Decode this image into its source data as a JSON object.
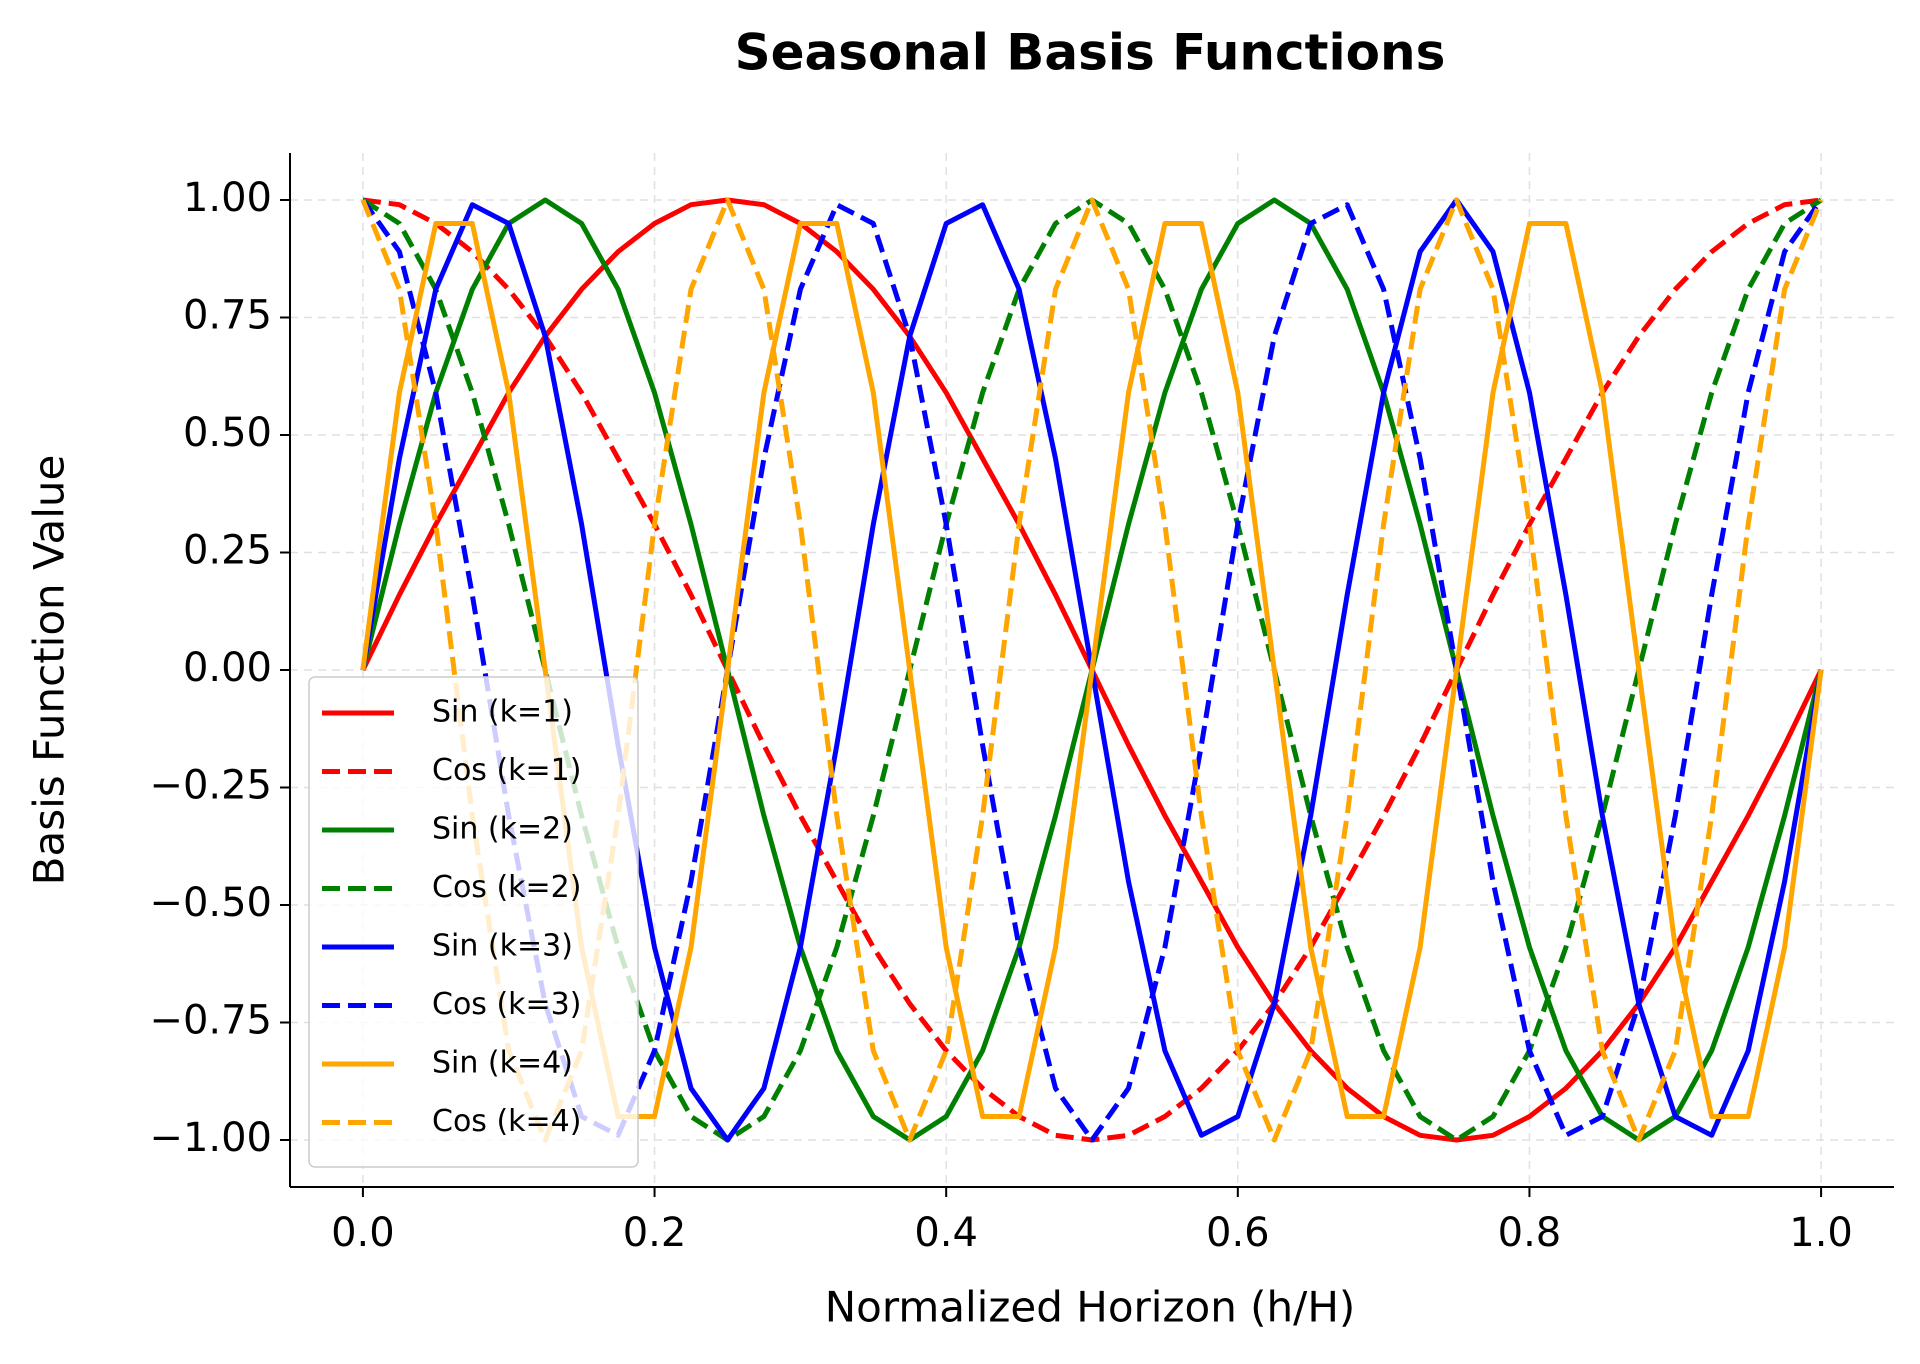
{
  "chart_data": {
    "type": "line",
    "title": "Seasonal Basis Functions",
    "xlabel": "Normalized Horizon (h/H)",
    "ylabel": "Basis Function Value",
    "xlim": [
      -0.05,
      1.05
    ],
    "ylim": [
      -1.1,
      1.1
    ],
    "xticks": [
      {
        "value": 0,
        "label": "0.0"
      },
      {
        "value": 0.2,
        "label": "0.2"
      },
      {
        "value": 0.4,
        "label": "0.4"
      },
      {
        "value": 0.6,
        "label": "0.6"
      },
      {
        "value": 0.8,
        "label": "0.8"
      },
      {
        "value": 1,
        "label": "1.0"
      }
    ],
    "yticks": [
      {
        "value": -1,
        "label": "−1.00"
      },
      {
        "value": -0.75,
        "label": "−0.75"
      },
      {
        "value": -0.5,
        "label": "−0.50"
      },
      {
        "value": -0.25,
        "label": "−0.25"
      },
      {
        "value": 0,
        "label": "0.00"
      },
      {
        "value": 0.25,
        "label": "0.25"
      },
      {
        "value": 0.5,
        "label": "0.50"
      },
      {
        "value": 0.75,
        "label": "0.75"
      },
      {
        "value": 1,
        "label": "1.00"
      }
    ],
    "grid": true,
    "legend_loc": "lower left",
    "x": [
      0,
      0.025,
      0.05,
      0.075,
      0.1,
      0.125,
      0.15,
      0.175,
      0.2,
      0.225,
      0.25,
      0.275,
      0.3,
      0.325,
      0.35,
      0.375,
      0.4,
      0.425,
      0.45,
      0.475,
      0.5,
      0.525,
      0.55,
      0.575,
      0.6,
      0.625,
      0.65,
      0.675,
      0.7,
      0.725,
      0.75,
      0.775,
      0.8,
      0.825,
      0.85,
      0.875,
      0.9,
      0.925,
      0.95,
      0.975,
      1
    ],
    "series": [
      {
        "name": "Sin (k=1)",
        "color": "#ff0000",
        "linestyle": "solid",
        "values": [
          0,
          0.16,
          0.31,
          0.45,
          0.59,
          0.71,
          0.81,
          0.89,
          0.95,
          0.99,
          1,
          0.99,
          0.95,
          0.89,
          0.81,
          0.71,
          0.59,
          0.45,
          0.31,
          0.16,
          0,
          -0.16,
          -0.31,
          -0.45,
          -0.59,
          -0.71,
          -0.81,
          -0.89,
          -0.95,
          -0.99,
          -1,
          -0.99,
          -0.95,
          -0.89,
          -0.81,
          -0.71,
          -0.59,
          -0.45,
          -0.31,
          -0.16,
          0
        ]
      },
      {
        "name": "Cos (k=1)",
        "color": "#ff0000",
        "linestyle": "dashed",
        "values": [
          1,
          0.99,
          0.95,
          0.89,
          0.81,
          0.71,
          0.59,
          0.45,
          0.31,
          0.16,
          0,
          -0.16,
          -0.31,
          -0.45,
          -0.59,
          -0.71,
          -0.81,
          -0.89,
          -0.95,
          -0.99,
          -1,
          -0.99,
          -0.95,
          -0.89,
          -0.81,
          -0.71,
          -0.59,
          -0.45,
          -0.31,
          -0.16,
          0,
          0.16,
          0.31,
          0.45,
          0.59,
          0.71,
          0.81,
          0.89,
          0.95,
          0.99,
          1
        ]
      },
      {
        "name": "Sin (k=2)",
        "color": "#008000",
        "linestyle": "solid",
        "values": [
          0,
          0.31,
          0.59,
          0.81,
          0.95,
          1,
          0.95,
          0.81,
          0.59,
          0.31,
          0,
          -0.31,
          -0.59,
          -0.81,
          -0.95,
          -1,
          -0.95,
          -0.81,
          -0.59,
          -0.31,
          0,
          0.31,
          0.59,
          0.81,
          0.95,
          1,
          0.95,
          0.81,
          0.59,
          0.31,
          0,
          -0.31,
          -0.59,
          -0.81,
          -0.95,
          -1,
          -0.95,
          -0.81,
          -0.59,
          -0.31,
          0
        ]
      },
      {
        "name": "Cos (k=2)",
        "color": "#008000",
        "linestyle": "dashed",
        "values": [
          1,
          0.95,
          0.81,
          0.59,
          0.31,
          0,
          -0.31,
          -0.59,
          -0.81,
          -0.95,
          -1,
          -0.95,
          -0.81,
          -0.59,
          -0.31,
          0,
          0.31,
          0.59,
          0.81,
          0.95,
          1,
          0.95,
          0.81,
          0.59,
          0.31,
          0,
          -0.31,
          -0.59,
          -0.81,
          -0.95,
          -1,
          -0.95,
          -0.81,
          -0.59,
          -0.31,
          0,
          0.31,
          0.59,
          0.81,
          0.95,
          1
        ]
      },
      {
        "name": "Sin (k=3)",
        "color": "#0000ff",
        "linestyle": "solid",
        "values": [
          0,
          0.45,
          0.81,
          0.99,
          0.95,
          0.71,
          0.31,
          -0.16,
          -0.59,
          -0.89,
          -1,
          -0.89,
          -0.59,
          -0.16,
          0.31,
          0.71,
          0.95,
          0.99,
          0.81,
          0.45,
          0,
          -0.45,
          -0.81,
          -0.99,
          -0.95,
          -0.71,
          -0.31,
          0.16,
          0.59,
          0.89,
          1,
          0.89,
          0.59,
          0.16,
          -0.31,
          -0.71,
          -0.95,
          -0.99,
          -0.81,
          -0.45,
          0
        ]
      },
      {
        "name": "Cos (k=3)",
        "color": "#0000ff",
        "linestyle": "dashed",
        "values": [
          1,
          0.89,
          0.59,
          0.16,
          -0.31,
          -0.71,
          -0.95,
          -0.99,
          -0.81,
          -0.45,
          0,
          0.45,
          0.81,
          0.99,
          0.95,
          0.71,
          0.31,
          -0.16,
          -0.59,
          -0.89,
          -1,
          -0.89,
          -0.59,
          -0.16,
          0.31,
          0.71,
          0.95,
          0.99,
          0.81,
          0.45,
          0,
          -0.45,
          -0.81,
          -0.99,
          -0.95,
          -0.71,
          -0.31,
          0.16,
          0.59,
          0.89,
          1
        ]
      },
      {
        "name": "Sin (k=4)",
        "color": "#ffa500",
        "linestyle": "solid",
        "values": [
          0,
          0.59,
          0.95,
          0.95,
          0.59,
          0,
          -0.59,
          -0.95,
          -0.95,
          -0.59,
          0,
          0.59,
          0.95,
          0.95,
          0.59,
          0,
          -0.59,
          -0.95,
          -0.95,
          -0.59,
          0,
          0.59,
          0.95,
          0.95,
          0.59,
          0,
          -0.59,
          -0.95,
          -0.95,
          -0.59,
          0,
          0.59,
          0.95,
          0.95,
          0.59,
          0,
          -0.59,
          -0.95,
          -0.95,
          -0.59,
          0
        ]
      },
      {
        "name": "Cos (k=4)",
        "color": "#ffa500",
        "linestyle": "dashed",
        "values": [
          1,
          0.81,
          0.31,
          -0.31,
          -0.81,
          -1,
          -0.81,
          -0.31,
          0.31,
          0.81,
          1,
          0.81,
          0.31,
          -0.31,
          -0.81,
          -1,
          -0.81,
          -0.31,
          0.31,
          0.81,
          1,
          0.81,
          0.31,
          -0.31,
          -0.81,
          -1,
          -0.81,
          -0.31,
          0.31,
          0.81,
          1,
          0.81,
          0.31,
          -0.31,
          -0.81,
          -1,
          -0.81,
          -0.31,
          0.31,
          0.81,
          1
        ]
      }
    ]
  }
}
